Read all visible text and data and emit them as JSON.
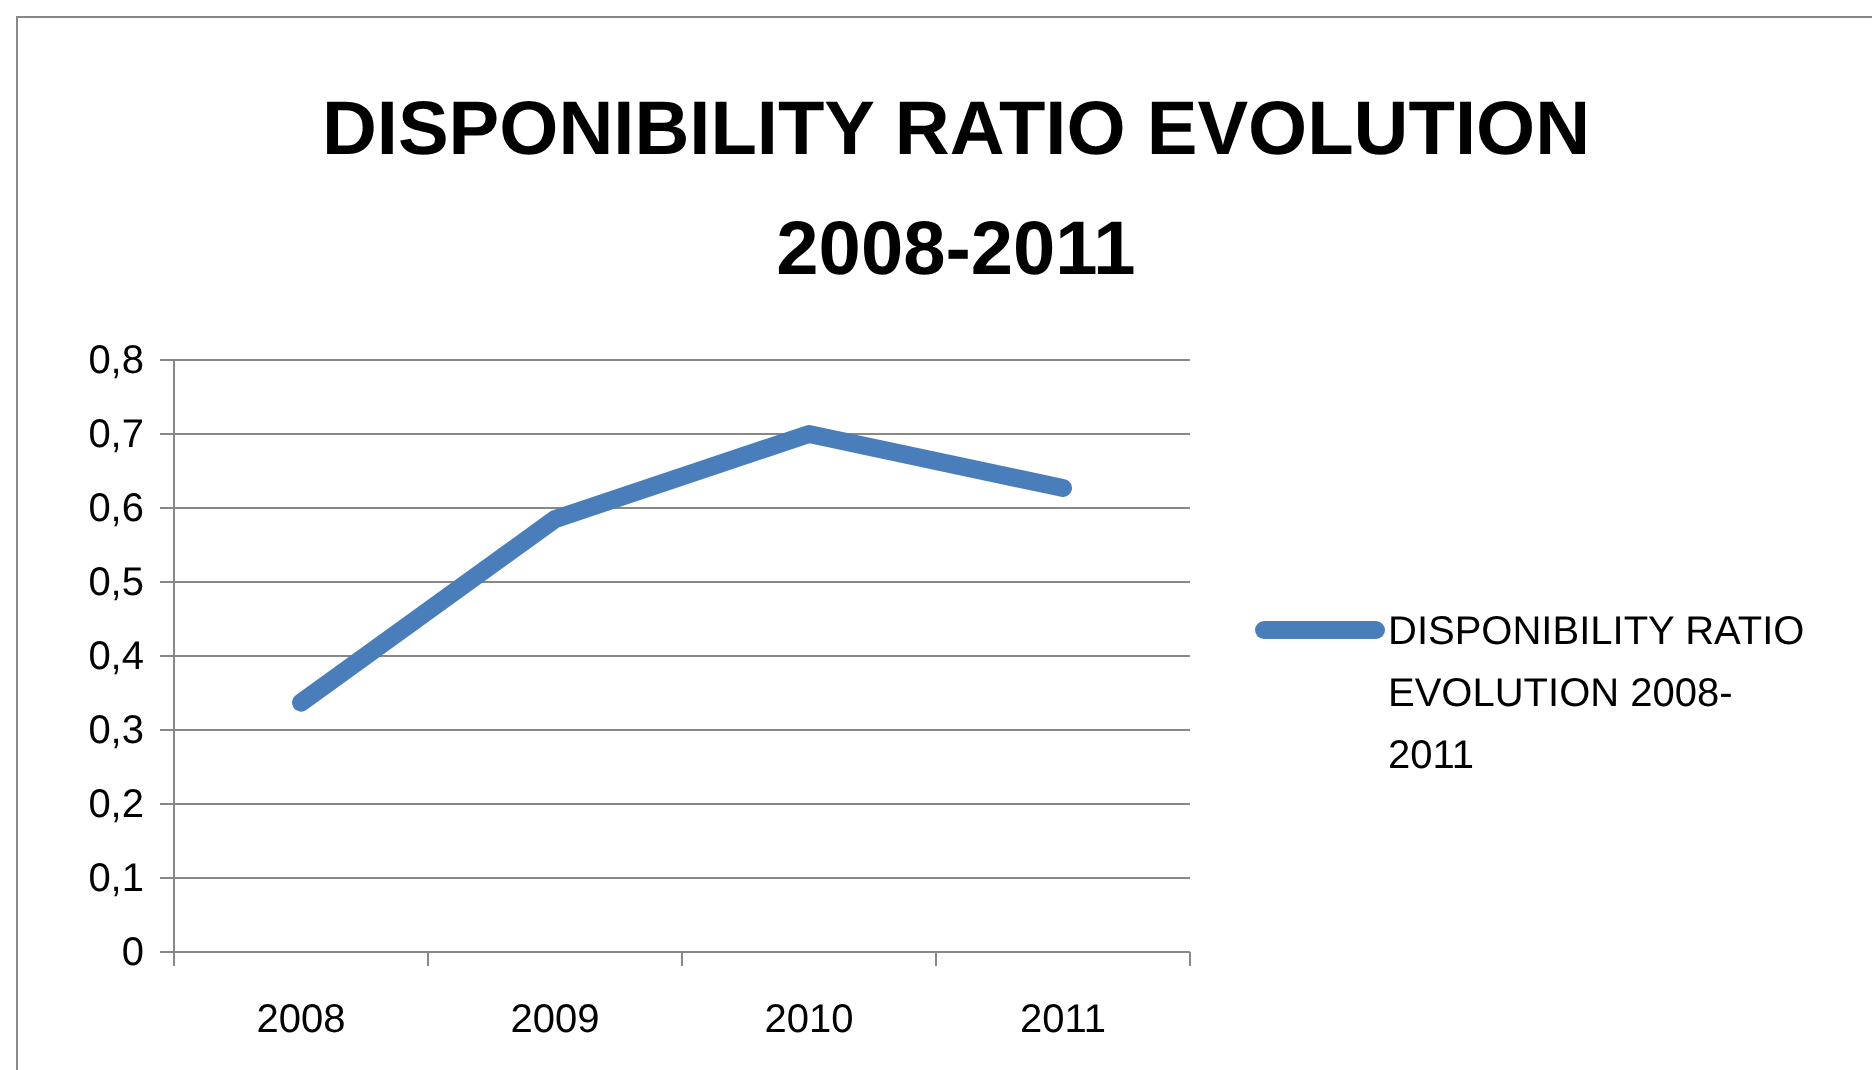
{
  "chart_data": {
    "type": "line",
    "title": "DISPONIBILITY RATIO EVOLUTION 2008-2011",
    "categories": [
      "2008",
      "2009",
      "2010",
      "2011"
    ],
    "series": [
      {
        "name": "DISPONIBILITY RATIO EVOLUTION 2008-2011",
        "color": "#4a7ebb",
        "values": [
          0.337,
          0.585,
          0.7,
          0.627
        ]
      }
    ],
    "ylim": [
      0,
      0.8
    ],
    "yticks": [
      {
        "value": 0,
        "label": "0"
      },
      {
        "value": 0.1,
        "label": "0,1"
      },
      {
        "value": 0.2,
        "label": "0,2"
      },
      {
        "value": 0.3,
        "label": "0,3"
      },
      {
        "value": 0.4,
        "label": "0,4"
      },
      {
        "value": 0.5,
        "label": "0,5"
      },
      {
        "value": 0.6,
        "label": "0,6"
      },
      {
        "value": 0.7,
        "label": "0,7"
      },
      {
        "value": 0.8,
        "label": "0,8"
      }
    ],
    "grid": "y",
    "legend": "right",
    "marker": "none",
    "line_style": "solid"
  }
}
